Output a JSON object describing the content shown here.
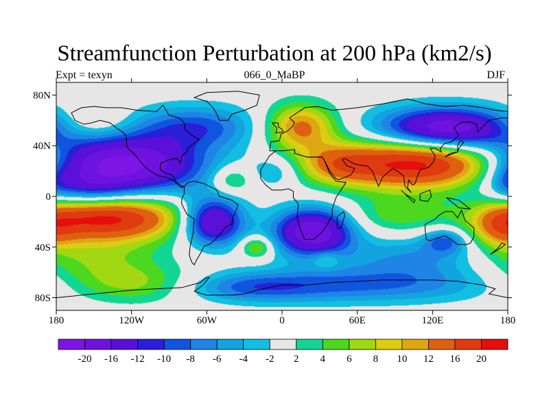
{
  "title": "Streamfunction Perturbation at 200 hPa (km2/s)",
  "subtitle_left": "Expt = texyn",
  "subtitle_center": "066_0_MaBP",
  "subtitle_right": "DJF",
  "map": {
    "projection": "cylindrical-equidistant",
    "lon_range": [
      -180,
      180
    ],
    "lat_range": [
      -90,
      90
    ],
    "missing_color": "#e6e6e6",
    "x_ticks": [
      {
        "lon": -180,
        "label": "180"
      },
      {
        "lon": -120,
        "label": "120W"
      },
      {
        "lon": -60,
        "label": "60W"
      },
      {
        "lon": 0,
        "label": "0"
      },
      {
        "lon": 60,
        "label": "60E"
      },
      {
        "lon": 120,
        "label": "120E"
      },
      {
        "lon": 180,
        "label": "180"
      }
    ],
    "y_ticks": [
      {
        "lat": 80,
        "label": "80N"
      },
      {
        "lat": 40,
        "label": "40N"
      },
      {
        "lat": 0,
        "label": "0"
      },
      {
        "lat": -40,
        "label": "40S"
      },
      {
        "lat": -80,
        "label": "80S"
      }
    ],
    "features": [
      {
        "lon": -135,
        "lat": 25,
        "rx": 48,
        "ry": 16,
        "amp": -24
      },
      {
        "lon": -155,
        "lat": 5,
        "rx": 22,
        "ry": 10,
        "amp": -6
      },
      {
        "lon": -140,
        "lat": -17,
        "rx": 42,
        "ry": 12,
        "amp": 21
      },
      {
        "lon": -150,
        "lat": -50,
        "rx": 40,
        "ry": 16,
        "amp": 6
      },
      {
        "lon": -110,
        "lat": -70,
        "rx": 40,
        "ry": 10,
        "amp": 6
      },
      {
        "lon": -150,
        "lat": 57,
        "rx": 22,
        "ry": 10,
        "amp": 5
      },
      {
        "lon": -70,
        "lat": 55,
        "rx": 36,
        "ry": 12,
        "amp": -9
      },
      {
        "lon": -40,
        "lat": 13,
        "rx": 12,
        "ry": 8,
        "amp": 6
      },
      {
        "lon": -55,
        "lat": -20,
        "rx": 17,
        "ry": 13,
        "amp": -18
      },
      {
        "lon": -20,
        "lat": -40,
        "rx": 9,
        "ry": 6,
        "amp": 8
      },
      {
        "lon": 15,
        "lat": 55,
        "rx": 20,
        "ry": 13,
        "amp": 13
      },
      {
        "lon": -5,
        "lat": 20,
        "rx": 14,
        "ry": 9,
        "amp": -5
      },
      {
        "lon": 25,
        "lat": -28,
        "rx": 22,
        "ry": 13,
        "amp": -20
      },
      {
        "lon": 35,
        "lat": -50,
        "rx": 8,
        "ry": 5,
        "amp": 4
      },
      {
        "lon": 112,
        "lat": 26,
        "rx": 55,
        "ry": 14,
        "amp": 23
      },
      {
        "lon": 45,
        "lat": 25,
        "rx": 20,
        "ry": 10,
        "amp": 6
      },
      {
        "lon": 130,
        "lat": 53,
        "rx": 38,
        "ry": 12,
        "amp": -20
      },
      {
        "lon": 90,
        "lat": -15,
        "rx": 30,
        "ry": 11,
        "amp": 5
      },
      {
        "lon": 130,
        "lat": -35,
        "rx": 12,
        "ry": 7,
        "amp": -8
      },
      {
        "lon": 105,
        "lat": -48,
        "rx": 40,
        "ry": 12,
        "amp": -6
      },
      {
        "lon": 60,
        "lat": -70,
        "rx": 80,
        "ry": 10,
        "amp": -8
      },
      {
        "lon": -30,
        "lat": -72,
        "rx": 40,
        "ry": 8,
        "amp": -6
      },
      {
        "lon": 175,
        "lat": -25,
        "rx": 15,
        "ry": 12,
        "amp": 8
      },
      {
        "lon": 180,
        "lat": 12,
        "rx": 10,
        "ry": 10,
        "amp": -4
      }
    ],
    "coastlines": [
      [
        [
          -168,
          66
        ],
        [
          -160,
          70
        ],
        [
          -150,
          71
        ],
        [
          -140,
          70
        ],
        [
          -128,
          70
        ],
        [
          -115,
          68
        ],
        [
          -100,
          67
        ],
        [
          -95,
          72
        ],
        [
          -90,
          64
        ],
        [
          -82,
          62
        ],
        [
          -78,
          58
        ],
        [
          -77,
          52
        ],
        [
          -70,
          47
        ],
        [
          -66,
          45
        ],
        [
          -70,
          42
        ],
        [
          -75,
          38
        ],
        [
          -76,
          35
        ],
        [
          -80,
          32
        ],
        [
          -81,
          26
        ],
        [
          -82,
          28
        ],
        [
          -84,
          30
        ],
        [
          -90,
          29
        ],
        [
          -97,
          26
        ],
        [
          -97,
          21
        ],
        [
          -92,
          18
        ],
        [
          -88,
          17
        ],
        [
          -84,
          11
        ],
        [
          -80,
          8
        ],
        [
          -78,
          8
        ],
        [
          -80,
          7
        ],
        [
          -83,
          9
        ],
        [
          -86,
          12
        ],
        [
          -92,
          15
        ],
        [
          -98,
          16
        ],
        [
          -105,
          20
        ],
        [
          -110,
          24
        ],
        [
          -115,
          30
        ],
        [
          -118,
          34
        ],
        [
          -122,
          37
        ],
        [
          -124,
          40
        ],
        [
          -124,
          46
        ],
        [
          -126,
          50
        ],
        [
          -132,
          54
        ],
        [
          -137,
          58
        ],
        [
          -145,
          60
        ],
        [
          -152,
          58
        ],
        [
          -158,
          57
        ],
        [
          -165,
          60
        ],
        [
          -168,
          66
        ]
      ],
      [
        [
          -78,
          8
        ],
        [
          -75,
          11
        ],
        [
          -70,
          12
        ],
        [
          -62,
          10
        ],
        [
          -52,
          5
        ],
        [
          -50,
          0
        ],
        [
          -40,
          -3
        ],
        [
          -35,
          -7
        ],
        [
          -37,
          -12
        ],
        [
          -39,
          -16
        ],
        [
          -40,
          -22
        ],
        [
          -45,
          -24
        ],
        [
          -48,
          -28
        ],
        [
          -53,
          -34
        ],
        [
          -58,
          -38
        ],
        [
          -62,
          -39
        ],
        [
          -65,
          -45
        ],
        [
          -68,
          -50
        ],
        [
          -70,
          -54
        ],
        [
          -72,
          -52
        ],
        [
          -74,
          -46
        ],
        [
          -73,
          -38
        ],
        [
          -71,
          -30
        ],
        [
          -70,
          -18
        ],
        [
          -76,
          -14
        ],
        [
          -80,
          -6
        ],
        [
          -80,
          -2
        ],
        [
          -78,
          2
        ],
        [
          -78,
          8
        ]
      ],
      [
        [
          -50,
          60
        ],
        [
          -43,
          60
        ],
        [
          -40,
          65
        ],
        [
          -30,
          68
        ],
        [
          -20,
          72
        ],
        [
          -18,
          80
        ],
        [
          -35,
          83
        ],
        [
          -60,
          82
        ],
        [
          -70,
          78
        ],
        [
          -60,
          75
        ],
        [
          -55,
          70
        ],
        [
          -52,
          65
        ],
        [
          -50,
          60
        ]
      ],
      [
        [
          -10,
          36
        ],
        [
          -9,
          43
        ],
        [
          -2,
          44
        ],
        [
          -1,
          49
        ],
        [
          5,
          52
        ],
        [
          8,
          55
        ],
        [
          10,
          58
        ],
        [
          6,
          62
        ],
        [
          12,
          66
        ],
        [
          18,
          70
        ],
        [
          28,
          71
        ],
        [
          40,
          68
        ],
        [
          60,
          70
        ],
        [
          80,
          73
        ],
        [
          100,
          77
        ],
        [
          115,
          73
        ],
        [
          130,
          71
        ],
        [
          145,
          72
        ],
        [
          160,
          70
        ],
        [
          170,
          68
        ],
        [
          180,
          67
        ]
      ],
      [
        [
          180,
          62
        ],
        [
          175,
          62
        ],
        [
          165,
          60
        ],
        [
          160,
          55
        ],
        [
          156,
          51
        ],
        [
          155,
          57
        ],
        [
          150,
          59
        ],
        [
          142,
          58
        ],
        [
          137,
          54
        ],
        [
          141,
          48
        ],
        [
          135,
          43
        ],
        [
          130,
          42
        ],
        [
          126,
          38
        ],
        [
          127,
          35
        ],
        [
          122,
          38
        ],
        [
          118,
          38
        ],
        [
          122,
          32
        ],
        [
          121,
          28
        ],
        [
          117,
          23
        ],
        [
          110,
          21
        ],
        [
          108,
          16
        ],
        [
          106,
          10
        ],
        [
          104,
          9
        ],
        [
          101,
          13
        ],
        [
          100,
          7
        ],
        [
          103,
          3
        ],
        [
          98,
          8
        ],
        [
          97,
          16
        ],
        [
          92,
          20
        ],
        [
          88,
          22
        ],
        [
          80,
          15
        ],
        [
          77,
          8
        ],
        [
          72,
          20
        ],
        [
          68,
          24
        ],
        [
          60,
          25
        ],
        [
          57,
          26
        ],
        [
          50,
          30
        ],
        [
          48,
          29
        ],
        [
          52,
          24
        ],
        [
          58,
          22
        ],
        [
          55,
          17
        ],
        [
          45,
          13
        ],
        [
          43,
          14
        ],
        [
          38,
          20
        ],
        [
          34,
          28
        ],
        [
          32,
          31
        ],
        [
          28,
          31
        ],
        [
          20,
          31
        ],
        [
          10,
          34
        ],
        [
          10,
          37
        ],
        [
          0,
          36
        ],
        [
          -5,
          36
        ],
        [
          -10,
          36
        ]
      ],
      [
        [
          -5,
          36
        ],
        [
          -10,
          32
        ],
        [
          -17,
          21
        ],
        [
          -17,
          14
        ],
        [
          -13,
          9
        ],
        [
          -8,
          5
        ],
        [
          0,
          5
        ],
        [
          5,
          6
        ],
        [
          9,
          4
        ],
        [
          9,
          -1
        ],
        [
          13,
          -6
        ],
        [
          12,
          -17
        ],
        [
          15,
          -27
        ],
        [
          18,
          -34
        ],
        [
          25,
          -34
        ],
        [
          32,
          -28
        ],
        [
          35,
          -24
        ],
        [
          40,
          -15
        ],
        [
          40,
          -10
        ],
        [
          43,
          -1
        ],
        [
          51,
          11
        ],
        [
          43,
          12
        ],
        [
          38,
          18
        ],
        [
          34,
          28
        ],
        [
          32,
          31
        ],
        [
          20,
          31
        ],
        [
          10,
          34
        ],
        [
          10,
          37
        ]
      ],
      [
        [
          -8,
          58
        ],
        [
          -3,
          58
        ],
        [
          -3,
          55
        ],
        [
          0,
          53
        ],
        [
          1,
          51
        ],
        [
          -5,
          50
        ],
        [
          -4,
          54
        ],
        [
          -8,
          58
        ]
      ],
      [
        [
          44,
          -25
        ],
        [
          47,
          -25
        ],
        [
          50,
          -15
        ],
        [
          49,
          -12
        ],
        [
          44,
          -16
        ],
        [
          44,
          -25
        ]
      ],
      [
        [
          114,
          -22
        ],
        [
          114,
          -26
        ],
        [
          115,
          -34
        ],
        [
          118,
          -35
        ],
        [
          124,
          -33
        ],
        [
          130,
          -31
        ],
        [
          136,
          -35
        ],
        [
          140,
          -38
        ],
        [
          147,
          -38
        ],
        [
          150,
          -37
        ],
        [
          153,
          -32
        ],
        [
          153,
          -25
        ],
        [
          146,
          -19
        ],
        [
          143,
          -11
        ],
        [
          140,
          -17
        ],
        [
          136,
          -12
        ],
        [
          130,
          -12
        ],
        [
          125,
          -15
        ],
        [
          122,
          -18
        ],
        [
          114,
          -22
        ]
      ],
      [
        [
          130,
          31
        ],
        [
          134,
          34
        ],
        [
          140,
          35
        ],
        [
          140,
          40
        ],
        [
          142,
          44
        ],
        [
          145,
          43
        ],
        [
          141,
          38
        ],
        [
          140,
          35
        ],
        [
          134,
          33
        ],
        [
          130,
          31
        ]
      ],
      [
        [
          95,
          5
        ],
        [
          105,
          -5
        ],
        [
          106,
          -3
        ],
        [
          98,
          2
        ],
        [
          95,
          5
        ]
      ],
      [
        [
          110,
          2
        ],
        [
          118,
          5
        ],
        [
          119,
          0
        ],
        [
          116,
          -4
        ],
        [
          110,
          -3
        ],
        [
          110,
          2
        ]
      ],
      [
        [
          131,
          -1
        ],
        [
          141,
          -3
        ],
        [
          150,
          -10
        ],
        [
          141,
          -9
        ],
        [
          131,
          -1
        ]
      ],
      [
        [
          166,
          -46
        ],
        [
          174,
          -41
        ],
        [
          178,
          -38
        ],
        [
          175,
          -37
        ],
        [
          172,
          -41
        ],
        [
          166,
          -46
        ]
      ],
      [
        [
          -180,
          -80
        ],
        [
          -160,
          -78
        ],
        [
          -150,
          -77
        ],
        [
          -140,
          -76
        ],
        [
          -120,
          -74
        ],
        [
          -100,
          -73
        ],
        [
          -80,
          -72
        ],
        [
          -65,
          -68
        ],
        [
          -60,
          -64
        ],
        [
          -58,
          -64
        ],
        [
          -63,
          -70
        ],
        [
          -70,
          -75
        ],
        [
          -60,
          -78
        ],
        [
          -40,
          -78
        ],
        [
          -30,
          -77
        ],
        [
          -20,
          -74
        ],
        [
          0,
          -70
        ],
        [
          20,
          -70
        ],
        [
          40,
          -68
        ],
        [
          60,
          -67
        ],
        [
          80,
          -66
        ],
        [
          100,
          -66
        ],
        [
          120,
          -66
        ],
        [
          140,
          -67
        ],
        [
          160,
          -70
        ],
        [
          170,
          -73
        ],
        [
          165,
          -77
        ],
        [
          180,
          -80
        ]
      ]
    ]
  },
  "colorbar": {
    "colors": [
      "#7d15e6",
      "#6e12e0",
      "#5a10d8",
      "#2b1ed8",
      "#1055e0",
      "#1e84e6",
      "#12a3e0",
      "#12bfe3",
      "#e6e6e6",
      "#12d693",
      "#4cd81e",
      "#a1d812",
      "#dccd12",
      "#dea612",
      "#de6010",
      "#e03a10",
      "#e60d0d"
    ],
    "levels": [
      -20,
      -16,
      -12,
      -10,
      -8,
      -6,
      -4,
      -2,
      2,
      4,
      6,
      8,
      10,
      12,
      16,
      20
    ],
    "labels": [
      "-20",
      "-16",
      "-12",
      "-10",
      "-8",
      "-6",
      "-4",
      "-2",
      "2",
      "4",
      "6",
      "8",
      "10",
      "12",
      "16",
      "20"
    ]
  }
}
